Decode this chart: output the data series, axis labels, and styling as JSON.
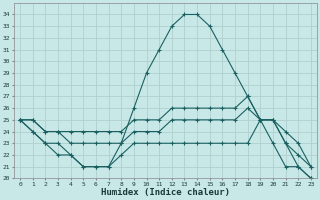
{
  "xlabel": "Humidex (Indice chaleur)",
  "bg_color": "#c8e8e8",
  "grid_color": "#b0d0d0",
  "line_color": "#1a6060",
  "x": [
    0,
    1,
    2,
    3,
    4,
    5,
    6,
    7,
    8,
    9,
    10,
    11,
    12,
    13,
    14,
    15,
    16,
    17,
    18,
    19,
    20,
    21,
    22,
    23
  ],
  "line1": [
    25,
    24,
    23,
    23,
    22,
    21,
    21,
    21,
    23,
    26,
    29,
    31,
    33,
    34,
    34,
    33,
    31,
    29,
    27,
    25,
    23,
    21,
    21,
    20
  ],
  "line2": [
    25,
    25,
    24,
    24,
    24,
    24,
    24,
    24,
    24,
    25,
    25,
    25,
    26,
    26,
    26,
    26,
    26,
    26,
    27,
    25,
    25,
    24,
    23,
    21
  ],
  "line3": [
    25,
    25,
    24,
    24,
    23,
    23,
    23,
    23,
    23,
    24,
    24,
    24,
    25,
    25,
    25,
    25,
    25,
    25,
    26,
    25,
    25,
    23,
    22,
    21
  ],
  "line4": [
    25,
    24,
    23,
    22,
    22,
    21,
    21,
    21,
    22,
    23,
    23,
    23,
    23,
    23,
    23,
    23,
    23,
    23,
    23,
    25,
    25,
    23,
    21,
    20
  ],
  "ylim": [
    20,
    35
  ],
  "yticks": [
    20,
    21,
    22,
    23,
    24,
    25,
    26,
    27,
    28,
    29,
    30,
    31,
    32,
    33,
    34
  ],
  "xticks": [
    0,
    1,
    2,
    3,
    4,
    5,
    6,
    7,
    8,
    9,
    10,
    11,
    12,
    13,
    14,
    15,
    16,
    17,
    18,
    19,
    20,
    21,
    22,
    23
  ]
}
